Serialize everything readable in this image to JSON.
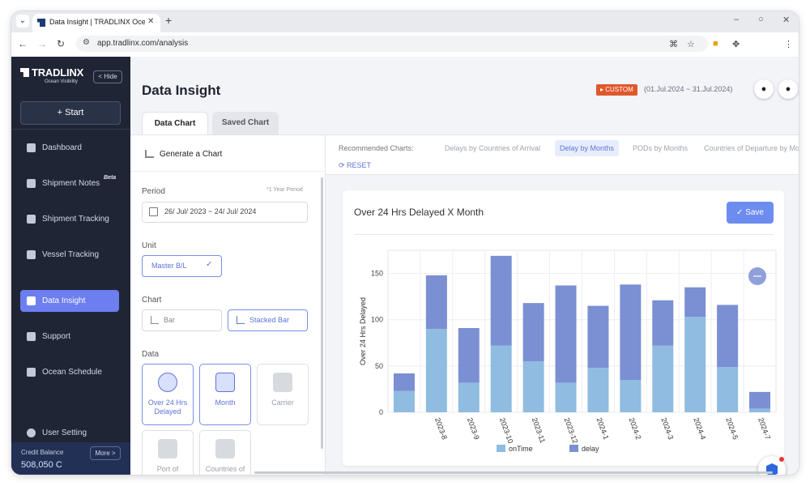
{
  "browser": {
    "tab_title": "Data Insight | TRADLINX Ocean Visibility",
    "url": "app.tradlinx.com/analysis"
  },
  "sidebar": {
    "logo": "TRADLINX",
    "logo_sub": "Ocean Visibility",
    "hide_label": "Hide",
    "start_label": "+ Start",
    "items": [
      {
        "label": "Dashboard"
      },
      {
        "label": "Shipment Notes",
        "badge": "Beta"
      },
      {
        "label": "Shipment Tracking"
      },
      {
        "label": "Vessel Tracking"
      },
      {
        "label": "Data Insight"
      },
      {
        "label": "Support"
      },
      {
        "label": "Ocean Schedule"
      }
    ],
    "user_setting": "User Setting",
    "credit_label": "Credit Balance",
    "credit_value": "508,050 C",
    "more_label": "More >"
  },
  "header": {
    "title": "Data Insight",
    "custom_badge": "CUSTOM",
    "date_range": "(01.Jul.2024 ~ 31.Jul.2024)"
  },
  "tabs": [
    "Data Chart",
    "Saved Chart"
  ],
  "left_panel": {
    "generate_title": "Generate a Chart",
    "period_label": "Period",
    "period_note": "*1 Year Period",
    "period_value": "26/ Jul/ 2023 ~ 24/ Jul/ 2024",
    "unit_label": "Unit",
    "unit_value": "Master B/L",
    "chart_label": "Chart",
    "chart_types": [
      "Bar",
      "Stacked Bar"
    ],
    "data_label": "Data",
    "data_options": [
      {
        "label": "Over 24 Hrs Delayed",
        "icon": "timer-24hr-icon"
      },
      {
        "label": "Month",
        "icon": "calendar-month-icon"
      },
      {
        "label": "Carrier",
        "icon": "ship-icon"
      },
      {
        "label": "Port of Discharge",
        "icon": "port-ship-icon"
      },
      {
        "label": "Countries of Arrival",
        "icon": "map-pin-icon"
      }
    ]
  },
  "recommended": {
    "label": "Recommended Charts:",
    "charts": [
      "Delays by Countries of Arrival",
      "Delay by Months",
      "PODs by Months",
      "Countries of Departure by Months"
    ],
    "reset_label": "RESET"
  },
  "chart_card": {
    "title": "Over 24 Hrs Delayed X Month",
    "save_label": "Save"
  },
  "colors": {
    "ontime": "#8fbce0",
    "delay": "#7b8fd3",
    "accent": "#6d7ef0"
  },
  "chart_data": {
    "type": "bar",
    "stacked": true,
    "categories": [
      "",
      "2023-8",
      "2023-9",
      "2023-10",
      "2023-11",
      "2023-12",
      "2024-1",
      "2024-2",
      "2024-3",
      "2024-4",
      "2024-5",
      "2024-7"
    ],
    "series": [
      {
        "name": "onTime",
        "values": [
          23,
          90,
          32,
          72,
          55,
          32,
          48,
          35,
          72,
          103,
          49,
          4
        ]
      },
      {
        "name": "delay",
        "values": [
          19,
          58,
          59,
          97,
          63,
          105,
          67,
          103,
          49,
          32,
          67,
          18
        ]
      }
    ],
    "ylabel": "Over 24 Hrs Delayed",
    "ylim": [
      0,
      175
    ],
    "yticks": [
      0,
      50,
      100,
      150
    ],
    "legend": "bottom-center",
    "grid": true
  }
}
